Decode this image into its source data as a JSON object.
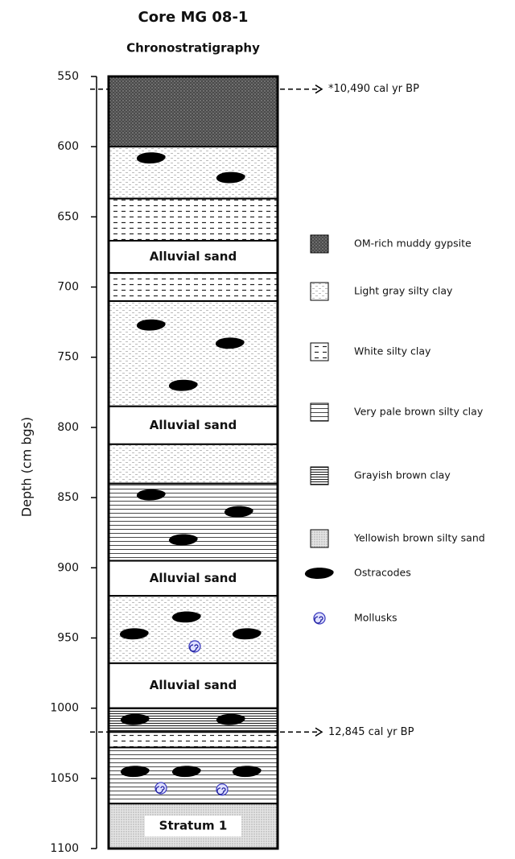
{
  "title": "Core MG 08-1",
  "subtitle": "Chronostratigraphy",
  "axis": {
    "label": "Depth (cm bgs)",
    "ylim": [
      550,
      1100
    ],
    "yticks": [
      550,
      600,
      650,
      700,
      750,
      800,
      850,
      900,
      950,
      1000,
      1050,
      1100
    ]
  },
  "layers": [
    {
      "top": 550,
      "bottom": 600,
      "lithology": "OM-rich muddy gypsite"
    },
    {
      "top": 600,
      "bottom": 637,
      "lithology": "Light gray silty clay"
    },
    {
      "top": 637,
      "bottom": 667,
      "lithology": "White silty clay"
    },
    {
      "top": 667,
      "bottom": 690,
      "label": "Alluvial sand"
    },
    {
      "top": 690,
      "bottom": 710,
      "lithology": "White silty clay"
    },
    {
      "top": 710,
      "bottom": 785,
      "lithology": "Light gray silty clay"
    },
    {
      "top": 785,
      "bottom": 812,
      "label": "Alluvial sand"
    },
    {
      "top": 812,
      "bottom": 840,
      "lithology": "Light gray silty clay"
    },
    {
      "top": 840,
      "bottom": 895,
      "lithology": "Very pale brown silty clay"
    },
    {
      "top": 895,
      "bottom": 920,
      "label": "Alluvial sand"
    },
    {
      "top": 920,
      "bottom": 968,
      "lithology": "Light gray silty clay"
    },
    {
      "top": 968,
      "bottom": 1000,
      "label": "Alluvial sand"
    },
    {
      "top": 1000,
      "bottom": 1017,
      "lithology": "Grayish brown clay"
    },
    {
      "top": 1017,
      "bottom": 1028,
      "lithology": "White silty clay"
    },
    {
      "top": 1028,
      "bottom": 1068,
      "lithology": "Very pale brown silty clay"
    },
    {
      "top": 1068,
      "bottom": 1100,
      "lithology": "Yellowish brown silty sand",
      "label": "Stratum 1"
    }
  ],
  "fossils": [
    {
      "kind": "Ostracodes",
      "depth": 608
    },
    {
      "kind": "Ostracodes",
      "depth": 622
    },
    {
      "kind": "Ostracodes",
      "depth": 727
    },
    {
      "kind": "Ostracodes",
      "depth": 740
    },
    {
      "kind": "Ostracodes",
      "depth": 770
    },
    {
      "kind": "Ostracodes",
      "depth": 848
    },
    {
      "kind": "Ostracodes",
      "depth": 860
    },
    {
      "kind": "Ostracodes",
      "depth": 880
    },
    {
      "kind": "Ostracodes",
      "depth": 935
    },
    {
      "kind": "Ostracodes",
      "depth": 947
    },
    {
      "kind": "Ostracodes",
      "depth": 947
    },
    {
      "kind": "Ostracodes",
      "depth": 1008
    },
    {
      "kind": "Ostracodes",
      "depth": 1008
    },
    {
      "kind": "Ostracodes",
      "depth": 1045
    },
    {
      "kind": "Ostracodes",
      "depth": 1045
    },
    {
      "kind": "Ostracodes",
      "depth": 1045
    },
    {
      "kind": "Mollusks",
      "depth": 956
    },
    {
      "kind": "Mollusks",
      "depth": 1057
    },
    {
      "kind": "Mollusks",
      "depth": 1058
    }
  ],
  "dates": [
    {
      "depth": 559,
      "label": "*10,490 cal yr BP"
    },
    {
      "depth": 1017,
      "label": "12,845 cal yr BP"
    }
  ],
  "legend": [
    "OM-rich muddy gypsite",
    "Light gray silty clay",
    "White silty clay",
    "Very pale brown silty clay",
    "Grayish brown clay",
    "Yellowish brown silty sand",
    "Ostracodes",
    "Mollusks"
  ]
}
